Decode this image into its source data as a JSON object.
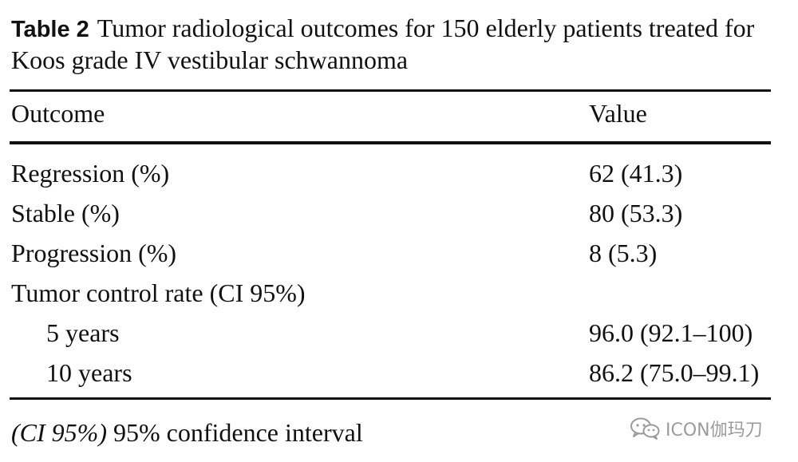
{
  "caption": {
    "label": "Table 2",
    "text": "Tumor radiological outcomes for 150 elderly patients treated for Koos grade IV vestibular schwannoma"
  },
  "columns": [
    "Outcome",
    "Value"
  ],
  "rows": [
    {
      "outcome": "Regression (%)",
      "value": "62 (41.3)"
    },
    {
      "outcome": "Stable (%)",
      "value": "80 (53.3)"
    },
    {
      "outcome": "Progression (%)",
      "value": "8 (5.3)"
    },
    {
      "outcome": "Tumor control rate (CI 95%)",
      "value": ""
    },
    {
      "outcome": "5 years",
      "value": "96.0 (92.1–100)"
    },
    {
      "outcome": "10 years",
      "value": "86.2 (75.0–99.1)"
    }
  ],
  "footnote": {
    "abbr": "(CI 95%)",
    "text": " 95% confidence interval"
  },
  "watermark": {
    "icon": "wechat-icon",
    "text": "ICON伽玛刀"
  }
}
